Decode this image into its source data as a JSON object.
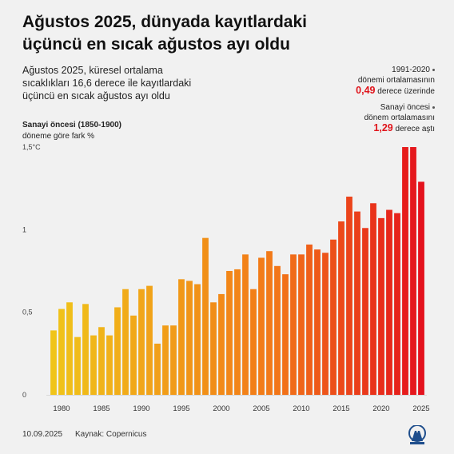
{
  "title": "Ağustos 2025, dünyada kayıtlardaki üçüncü en sıcak ağustos ayı oldu",
  "subtitle": "Ağustos 2025, küresel ortalama sıcaklıkları 16,6 derece ile kayıtlardaki üçüncü en sıcak ağustos ayı oldu",
  "ylabel": {
    "line1": "Sanayi öncesi (1850-1900)",
    "line2": "döneme göre fark %"
  },
  "annotations": [
    {
      "line1": "1991-2020",
      "line2": "dönemi ortalamasının",
      "value": "0,49",
      "suffix": "derece üzerinde"
    },
    {
      "line1": "Sanayi öncesi",
      "line2": "dönem ortalamasını",
      "value": "1,29",
      "suffix": "derece aştı"
    }
  ],
  "footer": {
    "date": "10.09.2025",
    "source": "Kaynak: Copernicus"
  },
  "logo": {
    "name": "aa-logo-icon",
    "text": "AA"
  },
  "chart_data": {
    "type": "bar",
    "xlabel": "",
    "ylabel": "",
    "ylim": [
      0,
      1.5
    ],
    "yticks": [
      {
        "value": 0,
        "label": "0"
      },
      {
        "value": 0.5,
        "label": "0,5"
      },
      {
        "value": 1,
        "label": "1"
      },
      {
        "value": 1.5,
        "label": "1,5°C"
      }
    ],
    "xticks": [
      "1980",
      "1985",
      "1990",
      "1995",
      "2000",
      "2005",
      "2010",
      "2015",
      "2020",
      "2025"
    ],
    "categories": [
      1979,
      1980,
      1981,
      1982,
      1983,
      1984,
      1985,
      1986,
      1987,
      1988,
      1989,
      1990,
      1991,
      1992,
      1993,
      1994,
      1995,
      1996,
      1997,
      1998,
      1999,
      2000,
      2001,
      2002,
      2003,
      2004,
      2005,
      2006,
      2007,
      2008,
      2009,
      2010,
      2011,
      2012,
      2013,
      2014,
      2015,
      2016,
      2017,
      2018,
      2019,
      2020,
      2021,
      2022,
      2023,
      2024,
      2025
    ],
    "values": [
      0.39,
      0.52,
      0.56,
      0.35,
      0.55,
      0.36,
      0.41,
      0.36,
      0.53,
      0.64,
      0.48,
      0.64,
      0.66,
      0.31,
      0.42,
      0.42,
      0.7,
      0.69,
      0.67,
      0.95,
      0.56,
      0.61,
      0.75,
      0.76,
      0.85,
      0.64,
      0.83,
      0.87,
      0.78,
      0.73,
      0.85,
      0.85,
      0.91,
      0.88,
      0.86,
      0.94,
      1.05,
      1.2,
      1.11,
      1.01,
      1.16,
      1.07,
      1.12,
      1.1,
      1.52,
      1.52,
      1.29
    ],
    "color_start": "#f0c419",
    "color_end": "#e4121d",
    "grid": false
  }
}
